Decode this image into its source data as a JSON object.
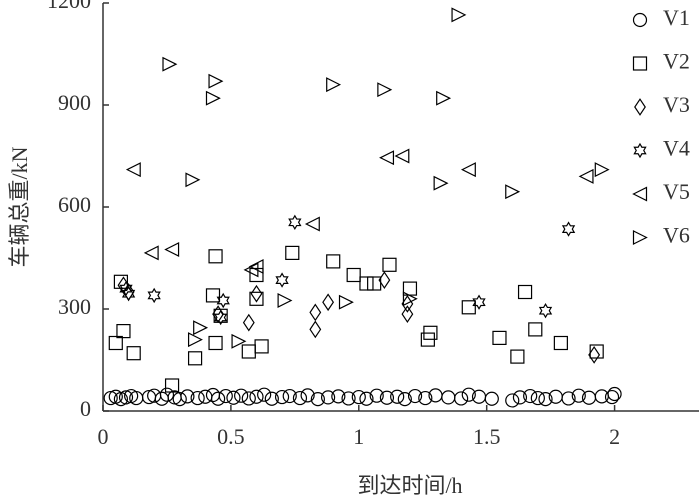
{
  "chart_data": {
    "type": "scatter",
    "xlabel": "到达时间/h",
    "ylabel": "车辆总重/kN",
    "xlim": [
      0,
      2.33
    ],
    "ylim": [
      0,
      1200
    ],
    "xticks": [
      0,
      0.5,
      1,
      1.5,
      2
    ],
    "yticks": [
      0,
      300,
      600,
      900,
      1200
    ],
    "legend": "upper right",
    "series": [
      {
        "name": "V1",
        "marker": "circle",
        "color": "#000000",
        "x": [
          0.03,
          0.05,
          0.07,
          0.09,
          0.11,
          0.13,
          0.18,
          0.2,
          0.23,
          0.25,
          0.28,
          0.3,
          0.33,
          0.37,
          0.4,
          0.43,
          0.45,
          0.48,
          0.51,
          0.54,
          0.57,
          0.6,
          0.63,
          0.66,
          0.7,
          0.73,
          0.77,
          0.8,
          0.84,
          0.88,
          0.92,
          0.96,
          1.0,
          1.03,
          1.07,
          1.11,
          1.15,
          1.18,
          1.22,
          1.26,
          1.3,
          1.35,
          1.4,
          1.43,
          1.47,
          1.52,
          1.6,
          1.63,
          1.67,
          1.7,
          1.73,
          1.77,
          1.82,
          1.86,
          1.9,
          1.95,
          1.99,
          2.0
        ],
        "values": [
          38,
          42,
          35,
          40,
          44,
          38,
          41,
          45,
          36,
          48,
          40,
          35,
          43,
          38,
          42,
          47,
          36,
          44,
          39,
          45,
          37,
          42,
          48,
          36,
          41,
          44,
          38,
          46,
          35,
          40,
          43,
          37,
          41,
          36,
          45,
          39,
          42,
          35,
          44,
          38,
          46,
          40,
          37,
          48,
          42,
          36,
          31,
          40,
          44,
          38,
          35,
          42,
          37,
          45,
          39,
          43,
          41,
          50
        ]
      },
      {
        "name": "V2",
        "marker": "square",
        "color": "#000000",
        "x": [
          0.05,
          0.07,
          0.08,
          0.12,
          0.27,
          0.36,
          0.43,
          0.44,
          0.44,
          0.46,
          0.57,
          0.6,
          0.6,
          0.62,
          0.74,
          0.9,
          0.98,
          1.03,
          1.06,
          1.12,
          1.2,
          1.27,
          1.28,
          1.43,
          1.55,
          1.62,
          1.65,
          1.69,
          1.79,
          1.93
        ],
        "values": [
          200,
          380,
          235,
          170,
          75,
          155,
          340,
          200,
          455,
          280,
          175,
          330,
          400,
          190,
          465,
          440,
          400,
          375,
          375,
          430,
          360,
          210,
          230,
          305,
          215,
          160,
          350,
          240,
          200,
          175
        ]
      },
      {
        "name": "V3",
        "marker": "diamond",
        "color": "#000000",
        "x": [
          0.08,
          0.1,
          0.45,
          0.57,
          0.6,
          0.83,
          0.83,
          0.88,
          1.1,
          1.19,
          1.19,
          1.92
        ],
        "values": [
          370,
          350,
          285,
          260,
          345,
          240,
          290,
          320,
          385,
          285,
          315,
          165
        ]
      },
      {
        "name": "V4",
        "marker": "star",
        "color": "#000000",
        "x": [
          0.09,
          0.1,
          0.2,
          0.46,
          0.47,
          0.7,
          0.75,
          1.47,
          1.73,
          1.82
        ],
        "values": [
          360,
          345,
          340,
          275,
          325,
          385,
          555,
          320,
          295,
          535
        ]
      },
      {
        "name": "V5",
        "marker": "triangle-left",
        "color": "#000000",
        "x": [
          0.12,
          0.19,
          0.27,
          0.58,
          0.6,
          0.82,
          1.11,
          1.17,
          1.43,
          1.89
        ],
        "values": [
          710,
          465,
          475,
          415,
          425,
          550,
          745,
          750,
          710,
          690
        ]
      },
      {
        "name": "V6",
        "marker": "triangle-right",
        "color": "#000000",
        "x": [
          0.26,
          0.35,
          0.36,
          0.38,
          0.43,
          0.44,
          0.53,
          0.71,
          0.9,
          0.95,
          1.1,
          1.2,
          1.32,
          1.33,
          1.39,
          1.6,
          1.95
        ],
        "values": [
          1020,
          680,
          210,
          245,
          920,
          970,
          205,
          325,
          960,
          320,
          945,
          330,
          670,
          920,
          1165,
          645,
          710
        ]
      }
    ]
  }
}
